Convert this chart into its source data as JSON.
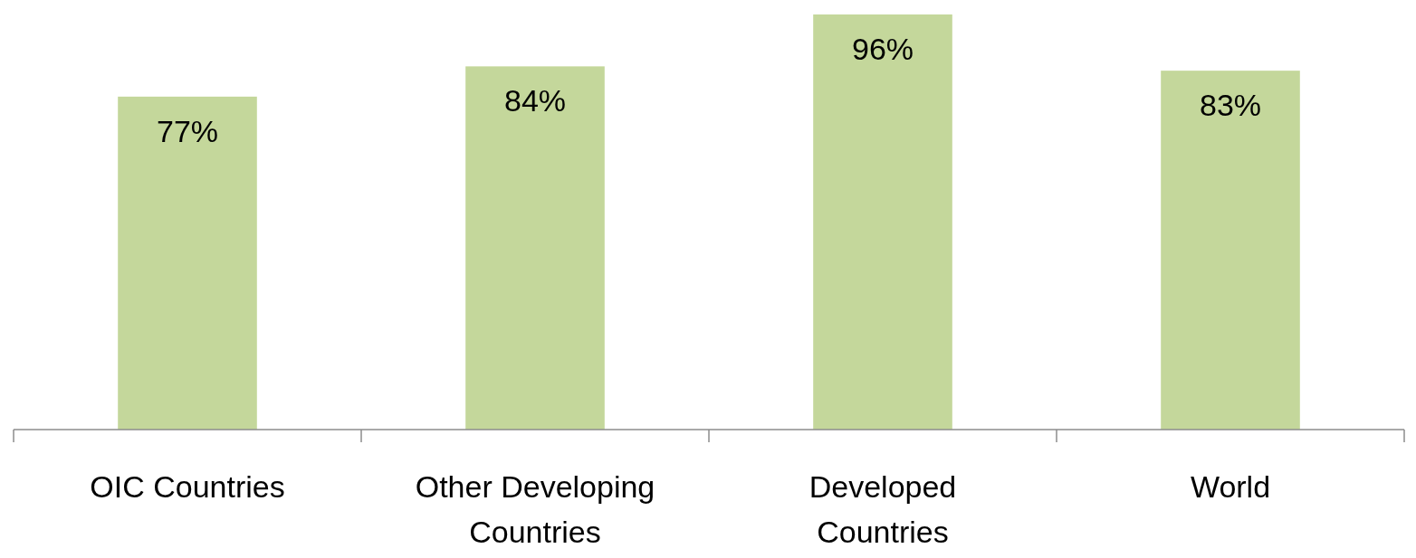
{
  "chart_data": {
    "type": "bar",
    "categories": [
      "OIC Countries",
      "Other Developing Countries",
      "Developed Countries",
      "World"
    ],
    "values": [
      77,
      84,
      96,
      83
    ],
    "value_labels": [
      "77%",
      "84%",
      "96%",
      "83%"
    ],
    "color": "#c4d79b"
  }
}
